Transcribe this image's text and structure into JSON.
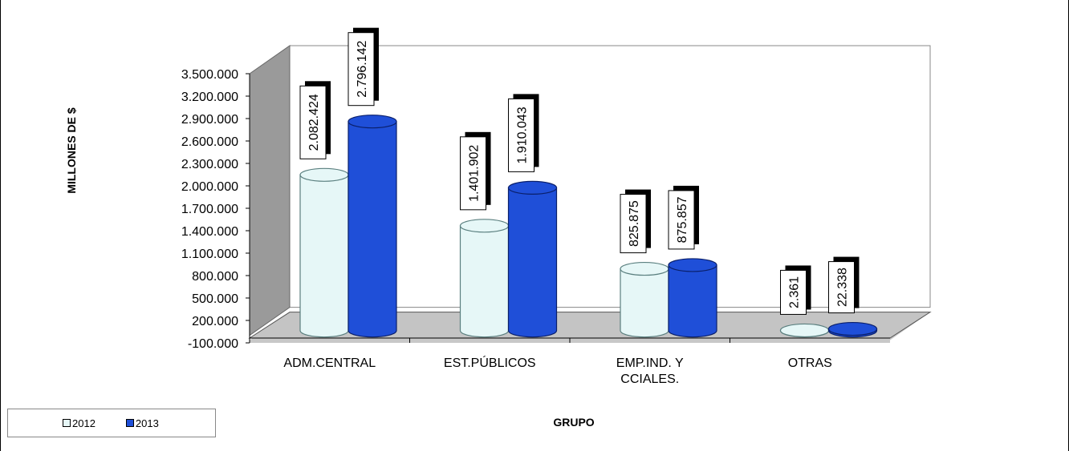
{
  "chart_data": {
    "type": "bar",
    "categories": [
      "ADM.CENTRAL",
      "EST.PÚBLICOS",
      "EMP.IND. Y CCIALES.",
      "OTRAS"
    ],
    "series": [
      {
        "name": "2012",
        "values": [
          2082424,
          1401902,
          825875,
          2361
        ],
        "labels": [
          "2.082.424",
          "1.401.902",
          "825.875",
          "2.361"
        ],
        "color": "#e6f7f7"
      },
      {
        "name": "2013",
        "values": [
          2796142,
          1910043,
          875857,
          22338
        ],
        "labels": [
          "2.796.142",
          "1.910.043",
          "875.857",
          "22.338"
        ],
        "color": "#1f4fd8"
      }
    ],
    "ylabel": "MILLONES DE $",
    "xlabel": "GRUPO",
    "ylim": [
      -100000,
      3500000
    ],
    "ytick_labels": [
      "3.500.000",
      "3.200.000",
      "2.900.000",
      "2.600.000",
      "2.300.000",
      "2.000.000",
      "1.700.000",
      "1.400.000",
      "1.100.000",
      "800.000",
      "500.000",
      "200.000",
      "-100.000"
    ],
    "category_labels": [
      [
        "ADM.CENTRAL"
      ],
      [
        "EST.PÚBLICOS"
      ],
      [
        "EMP.IND. Y",
        "CCIALES."
      ],
      [
        "OTRAS"
      ]
    ],
    "legend": {
      "position": "bottom-left",
      "entries": [
        "2012",
        "2013"
      ]
    },
    "style": "3d-cylinder"
  }
}
